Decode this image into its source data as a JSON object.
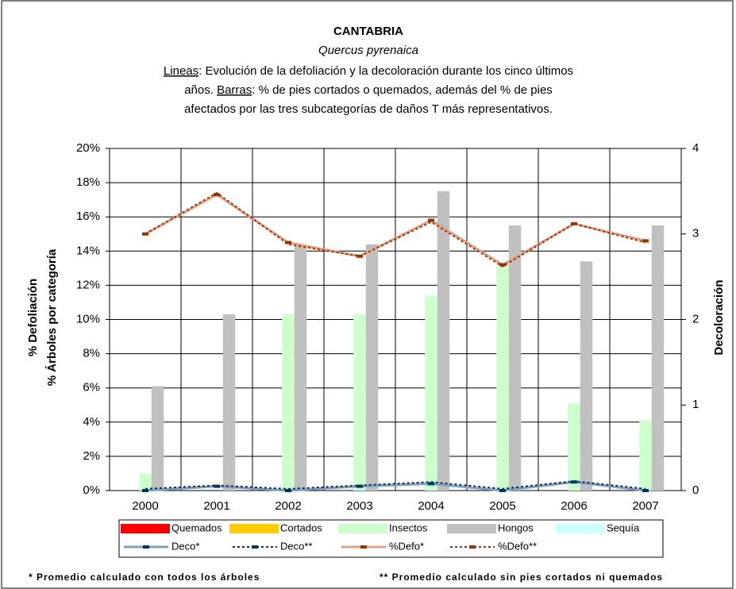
{
  "chart_data": {
    "type": "bar_line",
    "title": "CANTABRIA",
    "subtitle_italic": "Quercus pyrenaica",
    "subtitle_lines": [
      [
        {
          "text": "Lineas",
          "underline": true
        },
        {
          "text": ": Evolución de la defoliación y la decoloración durante los cinco últimos"
        }
      ],
      [
        {
          "text": "años. "
        },
        {
          "text": "Barras",
          "underline": true
        },
        {
          "text": ": % de pies cortados o quemados, además del % de pies"
        }
      ],
      [
        {
          "text": "afectados por las tres subcategorías de daños T más representativos."
        }
      ]
    ],
    "ylabel": [
      "% Defoliación",
      "% Árboles por categoría"
    ],
    "y2label": "Decoloración",
    "categories": [
      "2000",
      "2001",
      "2002",
      "2003",
      "2004",
      "2005",
      "2006",
      "2007"
    ],
    "ylim": [
      0,
      20
    ],
    "yticks": [
      {
        "value": 0,
        "label": "0%"
      },
      {
        "value": 2,
        "label": "2%"
      },
      {
        "value": 4,
        "label": "4%"
      },
      {
        "value": 6,
        "label": "6%"
      },
      {
        "value": 8,
        "label": "8%"
      },
      {
        "value": 10,
        "label": "10%"
      },
      {
        "value": 12,
        "label": "12%"
      },
      {
        "value": 14,
        "label": "14%"
      },
      {
        "value": 16,
        "label": "16%"
      },
      {
        "value": 18,
        "label": "18%"
      },
      {
        "value": 20,
        "label": "20%"
      }
    ],
    "y2lim": [
      0,
      4
    ],
    "y2ticks": [
      0,
      1,
      2,
      3,
      4
    ],
    "grid": true,
    "series": [
      {
        "name": "Quemados",
        "kind": "bar",
        "color": "#ff0000",
        "values": [
          0,
          0,
          0,
          0,
          0,
          0,
          0,
          0
        ]
      },
      {
        "name": "Cortados",
        "kind": "bar",
        "color": "#ffcc00",
        "values": [
          0,
          0,
          0,
          0,
          0,
          0,
          0,
          0
        ]
      },
      {
        "name": "Insectos",
        "kind": "bar",
        "color": "#ccffcc",
        "values": [
          1.0,
          0,
          10.3,
          10.3,
          11.4,
          13.2,
          5.1,
          4.1
        ]
      },
      {
        "name": "Hongos",
        "kind": "bar",
        "color": "#c0c0c0",
        "values": [
          6.1,
          10.3,
          14.3,
          14.4,
          17.5,
          15.5,
          13.4,
          15.5
        ]
      },
      {
        "name": "Sequía",
        "kind": "bar",
        "color": "#ccffff",
        "values": [
          0,
          0,
          0,
          0,
          0,
          0,
          0,
          0
        ]
      },
      {
        "name": "Deco*",
        "kind": "line",
        "axis": "y2",
        "color": "#7f9fbf",
        "marker_color": "#003366",
        "dash": false,
        "values": [
          0.0,
          0.05,
          0.0,
          0.05,
          0.08,
          0.0,
          0.1,
          0.0
        ]
      },
      {
        "name": "Deco**",
        "kind": "line",
        "axis": "y2",
        "color": "#003366",
        "dash": true,
        "values": [
          0.02,
          0.06,
          0.02,
          0.06,
          0.1,
          0.02,
          0.11,
          0.02
        ]
      },
      {
        "name": "%Defo*",
        "kind": "line",
        "color": "#e5a080",
        "marker_color": "#993300",
        "dash": false,
        "values": [
          15.0,
          17.3,
          14.5,
          13.7,
          15.8,
          13.2,
          15.6,
          14.6
        ]
      },
      {
        "name": "%Defo**",
        "kind": "line",
        "color": "#993300",
        "dash": true,
        "values": [
          15.0,
          17.4,
          14.4,
          13.7,
          15.7,
          13.1,
          15.6,
          14.5
        ]
      }
    ],
    "footnotes": [
      "* Promedio calculado con todos los árboles",
      "** Promedio calculado sin pies cortados ni quemados"
    ]
  }
}
